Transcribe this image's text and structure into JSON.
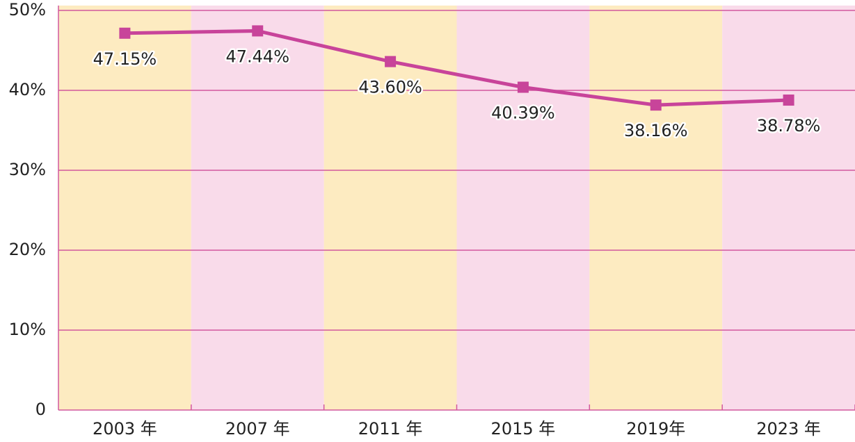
{
  "chart_data": {
    "type": "line",
    "categories": [
      "2003 年",
      "2007 年",
      "2011 年",
      "2015 年",
      "2019年",
      "2023 年"
    ],
    "series": [
      {
        "color": "#c8449a",
        "values": [
          47.15,
          47.44,
          43.6,
          40.39,
          38.16,
          38.78
        ],
        "value_labels": [
          "47.15%",
          "47.44%",
          "43.60%",
          "40.39%",
          "38.16%",
          "38.78%"
        ]
      }
    ],
    "ylim": [
      0,
      50
    ],
    "yticks": [
      0,
      {
        "value": 10,
        "label": "10%"
      },
      {
        "value": 20,
        "label": "20%"
      },
      {
        "value": 30,
        "label": "30%"
      },
      {
        "value": 40,
        "label": "40%"
      },
      {
        "value": 50,
        "label": "50%"
      }
    ],
    "grid": true,
    "band_colors": [
      "#fdebc1",
      "#f9dbea"
    ],
    "grid_color": "#d2589e"
  }
}
